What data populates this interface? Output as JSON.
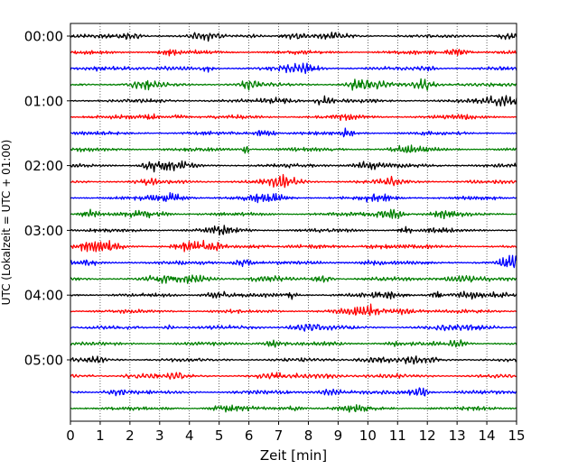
{
  "chart_data": {
    "type": "line",
    "title": "",
    "xlabel": "Zeit  [min]",
    "ylabel": "UTC (Lokalzeit = UTC + 01:00)",
    "xlim": [
      0,
      15
    ],
    "x_ticks": [
      "0",
      "1",
      "2",
      "3",
      "4",
      "5",
      "6",
      "7",
      "8",
      "9",
      "10",
      "11",
      "12",
      "13",
      "14",
      "15"
    ],
    "y_ticks": [
      {
        "label": "00:00",
        "trace": 0
      },
      {
        "label": "01:00",
        "trace": 4
      },
      {
        "label": "02:00",
        "trace": 8
      },
      {
        "label": "03:00",
        "trace": 12
      },
      {
        "label": "04:00",
        "trace": 16
      },
      {
        "label": "05:00",
        "trace": 20
      }
    ],
    "grid": "vertical dotted lines at each minute",
    "trace_interval_minutes": 15,
    "trace_count": 24,
    "color_cycle": [
      "#000000",
      "#ff0000",
      "#0000ff",
      "#008000"
    ],
    "series_description": "helicorder traces, small-amplitude noise, one trace per 15 minutes from 00:00 to 05:45 UTC"
  }
}
